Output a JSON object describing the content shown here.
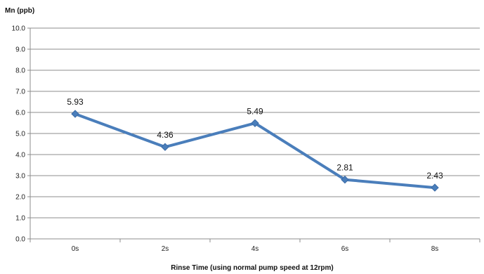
{
  "chart_data": {
    "type": "line",
    "title": "",
    "ylabel": "Mn (ppb)",
    "xlabel": "Rinse Time (using normal pump speed at 12rpm)",
    "categories": [
      "0s",
      "2s",
      "4s",
      "6s",
      "8s"
    ],
    "series": [
      {
        "values": [
          5.93,
          4.36,
          5.49,
          2.81,
          2.43
        ],
        "data_labels": [
          "5.93",
          "4.36",
          "5.49",
          "2.81",
          "2.43"
        ],
        "color": "#4a7ebb",
        "marker": "diamond"
      }
    ],
    "ylim": [
      0,
      10
    ],
    "y_tick_labels": [
      "0.0",
      "1.0",
      "2.0",
      "3.0",
      "4.0",
      "5.0",
      "6.0",
      "7.0",
      "8.0",
      "9.0",
      "10.0"
    ],
    "grid": true,
    "legend": "none"
  }
}
